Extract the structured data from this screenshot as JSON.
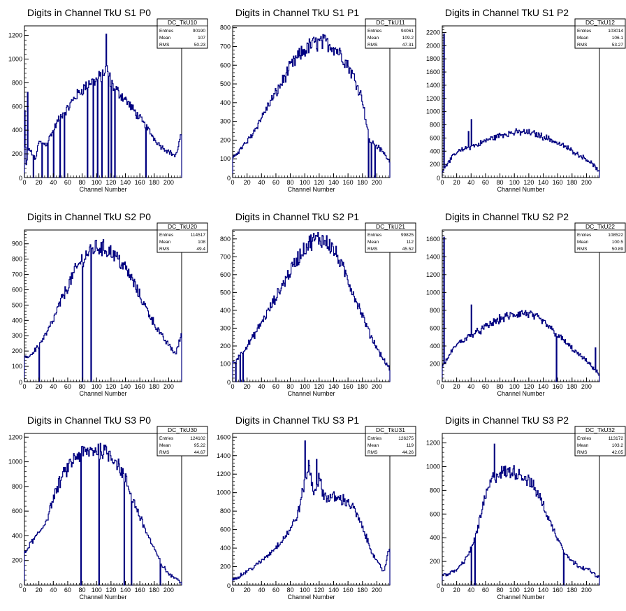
{
  "chart_data": [
    {
      "type": "bar",
      "title": "Digits in Channel TkU S1 P0",
      "stats": {
        "name": "DC_TkU10",
        "entries_label": "Entries",
        "entries": "90190",
        "mean_label": "Mean",
        "mean": "107",
        "rms_label": "RMS",
        "rms": "50.23"
      },
      "xlabel": "Channel Number",
      "xlim": [
        0,
        218
      ],
      "ylim": [
        0,
        1280
      ],
      "xticks": [
        0,
        20,
        40,
        60,
        80,
        100,
        120,
        140,
        160,
        180,
        200
      ],
      "yticks": [
        200,
        400,
        600,
        800,
        1000,
        1200
      ],
      "profile": [
        [
          0,
          720
        ],
        [
          2,
          80
        ],
        [
          6,
          250
        ],
        [
          15,
          150
        ],
        [
          20,
          300
        ],
        [
          30,
          280
        ],
        [
          40,
          400
        ],
        [
          50,
          520
        ],
        [
          60,
          580
        ],
        [
          70,
          680
        ],
        [
          80,
          740
        ],
        [
          90,
          800
        ],
        [
          100,
          820
        ],
        [
          110,
          880
        ],
        [
          115,
          920
        ],
        [
          120,
          800
        ],
        [
          130,
          720
        ],
        [
          140,
          660
        ],
        [
          150,
          580
        ],
        [
          160,
          500
        ],
        [
          170,
          420
        ],
        [
          180,
          330
        ],
        [
          190,
          260
        ],
        [
          200,
          220
        ],
        [
          210,
          180
        ],
        [
          218,
          380
        ]
      ],
      "spikes": [
        [
          4,
          720
        ],
        [
          12,
          0
        ],
        [
          24,
          0
        ],
        [
          32,
          0
        ],
        [
          40,
          0
        ],
        [
          49,
          0
        ],
        [
          55,
          0
        ],
        [
          87,
          0
        ],
        [
          95,
          0
        ],
        [
          101,
          0
        ],
        [
          107,
          0
        ],
        [
          113,
          1210
        ],
        [
          116,
          0
        ],
        [
          120,
          0
        ],
        [
          125,
          0
        ],
        [
          168,
          0
        ]
      ]
    },
    {
      "type": "bar",
      "title": "Digits in Channel TkU S1 P1",
      "stats": {
        "name": "DC_TkU11",
        "entries_label": "Entries",
        "entries": "94061",
        "mean_label": "Mean",
        "mean": "109.2",
        "rms_label": "RMS",
        "rms": "47.31"
      },
      "xlabel": "Channel Number",
      "xlim": [
        0,
        218
      ],
      "ylim": [
        0,
        810
      ],
      "xticks": [
        0,
        20,
        40,
        60,
        80,
        100,
        120,
        140,
        160,
        180,
        200
      ],
      "yticks": [
        100,
        200,
        300,
        400,
        500,
        600,
        700,
        800
      ],
      "profile": [
        [
          0,
          100
        ],
        [
          10,
          150
        ],
        [
          20,
          190
        ],
        [
          30,
          250
        ],
        [
          40,
          320
        ],
        [
          50,
          390
        ],
        [
          60,
          450
        ],
        [
          70,
          520
        ],
        [
          80,
          590
        ],
        [
          90,
          640
        ],
        [
          100,
          680
        ],
        [
          110,
          710
        ],
        [
          120,
          720
        ],
        [
          130,
          720
        ],
        [
          140,
          700
        ],
        [
          150,
          660
        ],
        [
          160,
          600
        ],
        [
          170,
          520
        ],
        [
          180,
          420
        ],
        [
          185,
          300
        ],
        [
          190,
          200
        ],
        [
          200,
          170
        ],
        [
          210,
          130
        ],
        [
          218,
          80
        ]
      ],
      "spikes": [
        [
          188,
          0
        ],
        [
          192,
          0
        ],
        [
          197,
          0
        ]
      ]
    },
    {
      "type": "bar",
      "title": "Digits in Channel TkU S1 P2",
      "stats": {
        "name": "DC_TkU12",
        "entries_label": "Entries",
        "entries": "103014",
        "mean_label": "Mean",
        "mean": "106.1",
        "rms_label": "RMS",
        "rms": "53.27"
      },
      "xlabel": "Channel Number",
      "xlim": [
        0,
        218
      ],
      "ylim": [
        0,
        2300
      ],
      "xticks": [
        0,
        20,
        40,
        60,
        80,
        100,
        120,
        140,
        160,
        180,
        200
      ],
      "yticks": [
        200,
        400,
        600,
        800,
        1000,
        1200,
        1400,
        1600,
        1800,
        2000,
        2200
      ],
      "profile": [
        [
          0,
          100
        ],
        [
          10,
          260
        ],
        [
          20,
          380
        ],
        [
          30,
          430
        ],
        [
          40,
          470
        ],
        [
          50,
          500
        ],
        [
          60,
          560
        ],
        [
          70,
          600
        ],
        [
          80,
          640
        ],
        [
          90,
          670
        ],
        [
          100,
          680
        ],
        [
          110,
          690
        ],
        [
          120,
          680
        ],
        [
          130,
          660
        ],
        [
          140,
          620
        ],
        [
          150,
          580
        ],
        [
          160,
          520
        ],
        [
          170,
          470
        ],
        [
          180,
          410
        ],
        [
          190,
          340
        ],
        [
          200,
          280
        ],
        [
          210,
          190
        ],
        [
          218,
          80
        ]
      ],
      "spikes": [
        [
          2,
          2180
        ],
        [
          40,
          880
        ],
        [
          36,
          700
        ]
      ]
    },
    {
      "type": "bar",
      "title": "Digits in Channel TkU S2 P0",
      "stats": {
        "name": "DC_TkU20",
        "entries_label": "Entries",
        "entries": "114517",
        "mean_label": "Mean",
        "mean": "108",
        "rms_label": "RMS",
        "rms": "49.4"
      },
      "xlabel": "Channel Number",
      "xlim": [
        0,
        218
      ],
      "ylim": [
        0,
        990
      ],
      "xticks": [
        0,
        20,
        40,
        60,
        80,
        100,
        120,
        140,
        160,
        180,
        200
      ],
      "yticks": [
        100,
        200,
        300,
        400,
        500,
        600,
        700,
        800,
        900
      ],
      "profile": [
        [
          0,
          150
        ],
        [
          10,
          180
        ],
        [
          20,
          240
        ],
        [
          30,
          310
        ],
        [
          40,
          400
        ],
        [
          50,
          520
        ],
        [
          60,
          620
        ],
        [
          70,
          720
        ],
        [
          80,
          800
        ],
        [
          90,
          850
        ],
        [
          100,
          880
        ],
        [
          110,
          870
        ],
        [
          120,
          850
        ],
        [
          130,
          800
        ],
        [
          140,
          740
        ],
        [
          150,
          660
        ],
        [
          160,
          560
        ],
        [
          170,
          470
        ],
        [
          180,
          380
        ],
        [
          190,
          300
        ],
        [
          200,
          240
        ],
        [
          210,
          180
        ],
        [
          218,
          320
        ]
      ],
      "spikes": [
        [
          20,
          0
        ],
        [
          80,
          0
        ],
        [
          92,
          0
        ]
      ]
    },
    {
      "type": "bar",
      "title": "Digits in Channel TkU S2 P1",
      "stats": {
        "name": "DC_TkU21",
        "entries_label": "Entries",
        "entries": "99825",
        "mean_label": "Mean",
        "mean": "112",
        "rms_label": "RMS",
        "rms": "45.52"
      },
      "xlabel": "Channel Number",
      "xlim": [
        0,
        218
      ],
      "ylim": [
        0,
        850
      ],
      "xticks": [
        0,
        20,
        40,
        60,
        80,
        100,
        120,
        140,
        160,
        180,
        200
      ],
      "yticks": [
        100,
        200,
        300,
        400,
        500,
        600,
        700,
        800
      ],
      "profile": [
        [
          0,
          100
        ],
        [
          10,
          150
        ],
        [
          20,
          200
        ],
        [
          30,
          260
        ],
        [
          40,
          330
        ],
        [
          50,
          400
        ],
        [
          60,
          470
        ],
        [
          70,
          550
        ],
        [
          80,
          620
        ],
        [
          90,
          690
        ],
        [
          100,
          750
        ],
        [
          110,
          790
        ],
        [
          120,
          800
        ],
        [
          130,
          790
        ],
        [
          140,
          740
        ],
        [
          150,
          660
        ],
        [
          160,
          570
        ],
        [
          170,
          470
        ],
        [
          180,
          370
        ],
        [
          190,
          270
        ],
        [
          200,
          190
        ],
        [
          210,
          120
        ],
        [
          218,
          70
        ]
      ],
      "spikes": [
        [
          4,
          0
        ],
        [
          10,
          0
        ],
        [
          14,
          0
        ]
      ]
    },
    {
      "type": "bar",
      "title": "Digits in Channel TkU S2 P2",
      "stats": {
        "name": "DC_TkU22",
        "entries_label": "Entries",
        "entries": "108522",
        "mean_label": "Mean",
        "mean": "100.5",
        "rms_label": "RMS",
        "rms": "50.89"
      },
      "xlabel": "Channel Number",
      "xlim": [
        0,
        218
      ],
      "ylim": [
        0,
        1700
      ],
      "xticks": [
        0,
        20,
        40,
        60,
        80,
        100,
        120,
        140,
        160,
        180,
        200
      ],
      "yticks": [
        200,
        400,
        600,
        800,
        1000,
        1200,
        1400,
        1600
      ],
      "profile": [
        [
          0,
          150
        ],
        [
          10,
          300
        ],
        [
          20,
          420
        ],
        [
          30,
          470
        ],
        [
          40,
          520
        ],
        [
          50,
          560
        ],
        [
          60,
          610
        ],
        [
          70,
          660
        ],
        [
          80,
          700
        ],
        [
          90,
          730
        ],
        [
          100,
          750
        ],
        [
          110,
          770
        ],
        [
          120,
          760
        ],
        [
          130,
          720
        ],
        [
          140,
          670
        ],
        [
          150,
          600
        ],
        [
          160,
          520
        ],
        [
          170,
          450
        ],
        [
          180,
          370
        ],
        [
          190,
          300
        ],
        [
          200,
          230
        ],
        [
          210,
          150
        ],
        [
          218,
          80
        ]
      ],
      "spikes": [
        [
          2,
          1620
        ],
        [
          40,
          860
        ],
        [
          158,
          0
        ],
        [
          212,
          380
        ]
      ]
    },
    {
      "type": "bar",
      "title": "Digits in Channel TkU S3 P0",
      "stats": {
        "name": "DC_TkU30",
        "entries_label": "Entries",
        "entries": "124102",
        "mean_label": "Mean",
        "mean": "95.22",
        "rms_label": "RMS",
        "rms": "44.67"
      },
      "xlabel": "Channel Number",
      "xlim": [
        0,
        218
      ],
      "ylim": [
        0,
        1230
      ],
      "xticks": [
        0,
        20,
        40,
        60,
        80,
        100,
        120,
        140,
        160,
        180,
        200
      ],
      "yticks": [
        200,
        400,
        600,
        800,
        1000,
        1200
      ],
      "profile": [
        [
          0,
          250
        ],
        [
          10,
          350
        ],
        [
          20,
          420
        ],
        [
          30,
          520
        ],
        [
          40,
          700
        ],
        [
          50,
          850
        ],
        [
          60,
          950
        ],
        [
          70,
          1030
        ],
        [
          80,
          1070
        ],
        [
          90,
          1080
        ],
        [
          100,
          1100
        ],
        [
          110,
          1090
        ],
        [
          120,
          1060
        ],
        [
          130,
          980
        ],
        [
          140,
          860
        ],
        [
          150,
          700
        ],
        [
          160,
          560
        ],
        [
          170,
          420
        ],
        [
          180,
          290
        ],
        [
          190,
          170
        ],
        [
          200,
          90
        ],
        [
          210,
          50
        ],
        [
          218,
          20
        ]
      ],
      "spikes": [
        [
          78,
          0
        ],
        [
          103,
          0
        ],
        [
          138,
          0
        ],
        [
          148,
          0
        ],
        [
          188,
          0
        ]
      ]
    },
    {
      "type": "bar",
      "title": "Digits in Channel TkU S3 P1",
      "stats": {
        "name": "DC_TkU31",
        "entries_label": "Entries",
        "entries": "126275",
        "mean_label": "Mean",
        "mean": "119",
        "rms_label": "RMS",
        "rms": "44.26"
      },
      "xlabel": "Channel Number",
      "xlim": [
        0,
        218
      ],
      "ylim": [
        0,
        1640
      ],
      "xticks": [
        0,
        20,
        40,
        60,
        80,
        100,
        120,
        140,
        160,
        180,
        200
      ],
      "yticks": [
        200,
        400,
        600,
        800,
        1000,
        1200,
        1400,
        1600
      ],
      "profile": [
        [
          0,
          60
        ],
        [
          10,
          100
        ],
        [
          20,
          150
        ],
        [
          30,
          200
        ],
        [
          40,
          260
        ],
        [
          50,
          330
        ],
        [
          60,
          410
        ],
        [
          70,
          500
        ],
        [
          80,
          600
        ],
        [
          90,
          760
        ],
        [
          100,
          1100
        ],
        [
          106,
          1300
        ],
        [
          112,
          1000
        ],
        [
          120,
          1150
        ],
        [
          125,
          1000
        ],
        [
          130,
          950
        ],
        [
          140,
          950
        ],
        [
          150,
          930
        ],
        [
          160,
          900
        ],
        [
          170,
          800
        ],
        [
          180,
          620
        ],
        [
          190,
          420
        ],
        [
          200,
          250
        ],
        [
          210,
          150
        ],
        [
          218,
          420
        ]
      ],
      "spikes": [
        [
          100,
          1560
        ],
        [
          116,
          1360
        ]
      ]
    },
    {
      "type": "bar",
      "title": "Digits in Channel TkU S3 P2",
      "stats": {
        "name": "DC_TkU32",
        "entries_label": "Entries",
        "entries": "113172",
        "mean_label": "Mean",
        "mean": "103.2",
        "rms_label": "RMS",
        "rms": "42.05"
      },
      "xlabel": "Channel Number",
      "xlim": [
        0,
        218
      ],
      "ylim": [
        0,
        1280
      ],
      "xticks": [
        0,
        20,
        40,
        60,
        80,
        100,
        120,
        140,
        160,
        180,
        200
      ],
      "yticks": [
        200,
        400,
        600,
        800,
        1000,
        1200
      ],
      "profile": [
        [
          0,
          80
        ],
        [
          10,
          100
        ],
        [
          20,
          130
        ],
        [
          30,
          200
        ],
        [
          40,
          300
        ],
        [
          50,
          500
        ],
        [
          60,
          750
        ],
        [
          70,
          900
        ],
        [
          80,
          950
        ],
        [
          90,
          950
        ],
        [
          100,
          960
        ],
        [
          110,
          930
        ],
        [
          120,
          880
        ],
        [
          130,
          800
        ],
        [
          140,
          680
        ],
        [
          150,
          520
        ],
        [
          160,
          400
        ],
        [
          170,
          280
        ],
        [
          180,
          200
        ],
        [
          190,
          160
        ],
        [
          200,
          140
        ],
        [
          210,
          100
        ],
        [
          218,
          60
        ]
      ],
      "spikes": [
        [
          40,
          0
        ],
        [
          45,
          0
        ],
        [
          72,
          1190
        ],
        [
          168,
          0
        ]
      ]
    }
  ]
}
